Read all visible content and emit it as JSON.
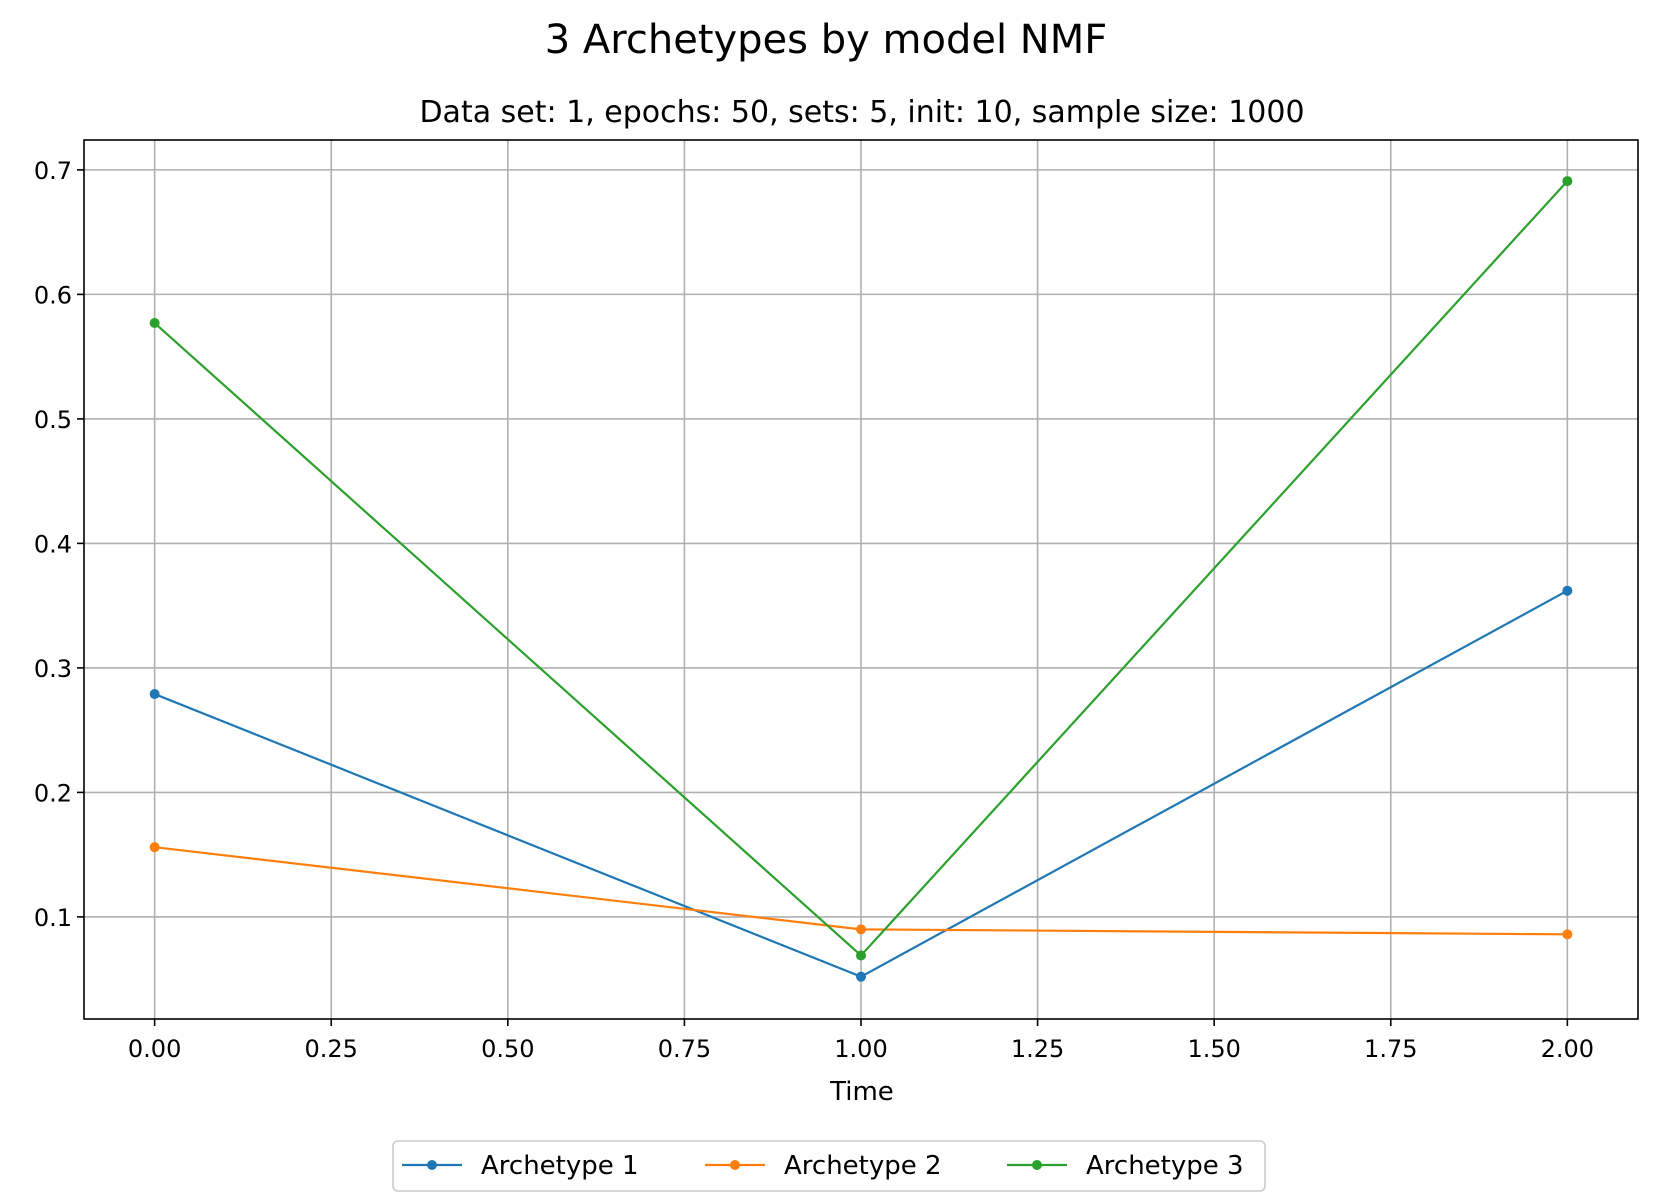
{
  "chart_data": {
    "type": "line",
    "title": "3 Archetypes by model NMF",
    "subtitle": "Data set: 1, epochs: 50, sets: 5, init: 10, sample size: 1000",
    "xlabel": "Time",
    "ylabel": "",
    "x": [
      0,
      1,
      2
    ],
    "xlim": [
      -0.1,
      2.1
    ],
    "ylim": [
      0.018,
      0.724
    ],
    "xticks": [
      "0.00",
      "0.25",
      "0.50",
      "0.75",
      "1.00",
      "1.25",
      "1.50",
      "1.75",
      "2.00"
    ],
    "yticks": [
      "0.1",
      "0.2",
      "0.3",
      "0.4",
      "0.5",
      "0.6",
      "0.7"
    ],
    "grid": true,
    "legend_placement": "bottom-center",
    "series": [
      {
        "name": "Archetype 1",
        "color": "#1f77b4",
        "values": [
          0.279,
          0.052,
          0.362
        ]
      },
      {
        "name": "Archetype 2",
        "color": "#ff7f0e",
        "values": [
          0.156,
          0.09,
          0.086
        ]
      },
      {
        "name": "Archetype 3",
        "color": "#2ca02c",
        "values": [
          0.577,
          0.069,
          0.691
        ]
      }
    ]
  }
}
